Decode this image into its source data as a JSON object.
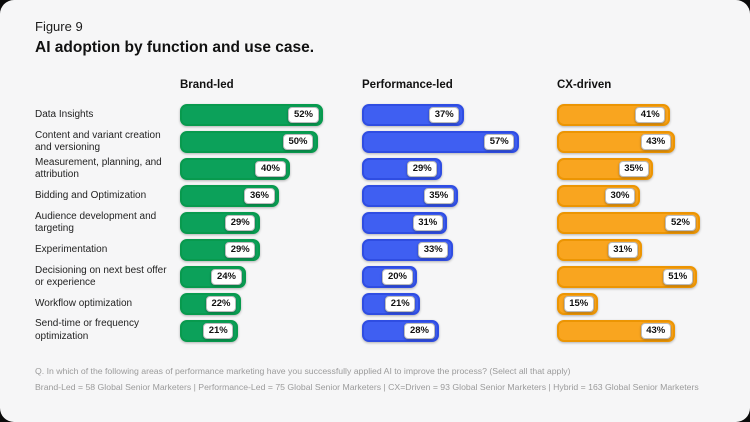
{
  "figure": {
    "eyebrow": "Figure 9",
    "title": "AI adoption by function and use case."
  },
  "chart_data": {
    "type": "bar",
    "orientation": "horizontal",
    "value_suffix": "%",
    "xlim": [
      0,
      60
    ],
    "categories": [
      "Data Insights",
      "Content and variant creation and versioning",
      "Measurement, planning, and attribution",
      "Bidding and Optimization",
      "Audience development and targeting",
      "Experimentation",
      "Decisioning on next best offer or experience",
      "Workflow optimization",
      "Send-time or frequency optimization"
    ],
    "series": [
      {
        "name": "Brand-led",
        "color": "#0ca15a",
        "border_color": "#089a4e",
        "values": [
          52,
          50,
          40,
          36,
          29,
          29,
          24,
          22,
          21
        ]
      },
      {
        "name": "Performance-led",
        "color": "#3f5ff2",
        "border_color": "#2f4de2",
        "values": [
          37,
          57,
          29,
          35,
          31,
          33,
          20,
          21,
          28
        ]
      },
      {
        "name": "CX-driven",
        "color": "#f9a51f",
        "border_color": "#ec9503",
        "values": [
          41,
          43,
          35,
          30,
          52,
          31,
          51,
          15,
          43
        ]
      }
    ]
  },
  "footnote": {
    "line1": "Q. In which of the following areas of performance marketing have you successfully applied AI to improve the process? (Select all that apply)",
    "line2": "Brand-Led = 58 Global Senior Marketers | Performance-Led = 75 Global Senior Marketers | CX=Driven = 93 Global Senior Marketers | Hybrid = 163 Global Senior Marketers"
  }
}
